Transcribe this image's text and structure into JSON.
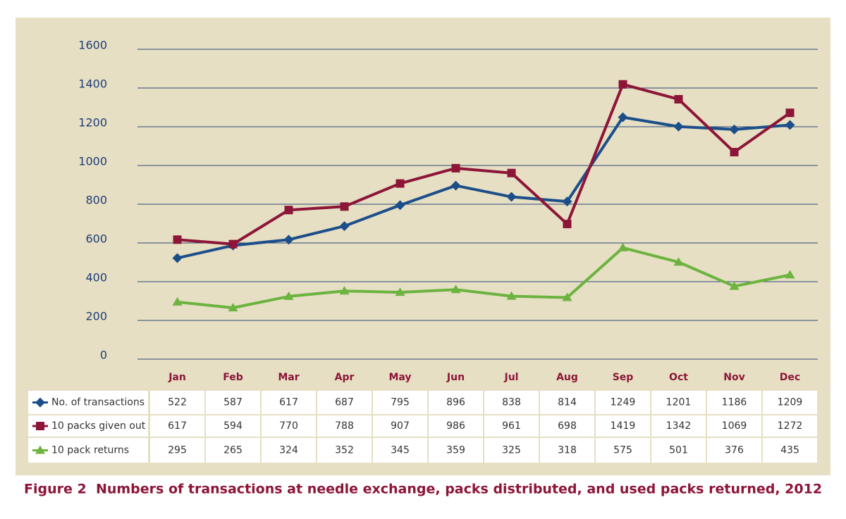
{
  "chart_data": {
    "type": "line",
    "title": "Figure 2  Numbers of transactions at needle exchange, packs distributed, and used packs returned, 2012",
    "categories": [
      "Jan",
      "Feb",
      "Mar",
      "Apr",
      "May",
      "Jun",
      "Jul",
      "Aug",
      "Sep",
      "Oct",
      "Nov",
      "Dec"
    ],
    "series": [
      {
        "name": "No. of transactions",
        "color": "#1c4f8a",
        "marker": "diamond",
        "values": [
          522,
          587,
          617,
          687,
          795,
          896,
          838,
          814,
          1249,
          1201,
          1186,
          1209
        ]
      },
      {
        "name": "10 packs given out",
        "color": "#8c1538",
        "marker": "square",
        "values": [
          617,
          594,
          770,
          788,
          907,
          986,
          961,
          698,
          1419,
          1342,
          1069,
          1272
        ]
      },
      {
        "name": "10 pack returns",
        "color": "#6cb33f",
        "marker": "triangle",
        "values": [
          295,
          265,
          324,
          352,
          345,
          359,
          325,
          318,
          575,
          501,
          376,
          435
        ]
      }
    ],
    "ylim": [
      0,
      1600
    ],
    "yticks": [
      0,
      200,
      400,
      600,
      800,
      1000,
      1200,
      1400,
      1600
    ],
    "grid": true
  }
}
